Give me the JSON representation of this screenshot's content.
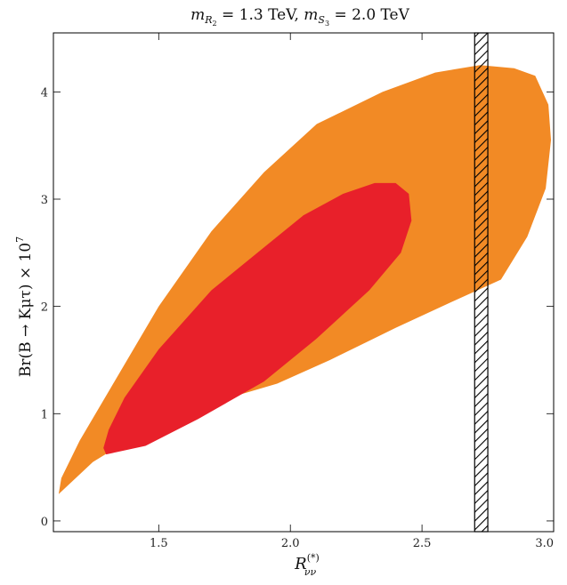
{
  "chart_data": {
    "type": "area",
    "title": {
      "prefix_var": "m",
      "prefix_sub_var": "R",
      "prefix_sub_sub": "2",
      "prefix_value": " = 1.3 TeV,  ",
      "second_var": "m",
      "second_sub_var": "S",
      "second_sub_sub": "3",
      "second_value": " = 2.0 TeV"
    },
    "xlabel": {
      "base": "R",
      "sup": "(*)",
      "sub": "νν"
    },
    "ylabel": "Br(B → Kμτ) × 10",
    "ylabel_exp": "7",
    "xlim": [
      1.1,
      3.0
    ],
    "ylim": [
      -0.1,
      4.55
    ],
    "x_ticks": [
      {
        "v": 1.5,
        "label": "1.5"
      },
      {
        "v": 2.0,
        "label": "2.0"
      },
      {
        "v": 2.5,
        "label": "2.5"
      },
      {
        "v": 3.0,
        "label": "3.0"
      }
    ],
    "y_ticks": [
      {
        "v": 0,
        "label": "0"
      },
      {
        "v": 1,
        "label": "1"
      },
      {
        "v": 2,
        "label": "2"
      },
      {
        "v": 3,
        "label": "3"
      },
      {
        "v": 4,
        "label": "4"
      }
    ],
    "colors": {
      "outer_region": "#F28A25",
      "inner_region": "#E8202A",
      "frame": "#000000",
      "hatch": "#000000"
    },
    "regions": [
      {
        "id": "outer",
        "color": "#F28A25",
        "points": [
          [
            1.12,
            0.25
          ],
          [
            1.25,
            0.55
          ],
          [
            1.45,
            0.85
          ],
          [
            1.7,
            1.1
          ],
          [
            1.95,
            1.28
          ],
          [
            2.15,
            1.5
          ],
          [
            2.4,
            1.8
          ],
          [
            2.62,
            2.05
          ],
          [
            2.8,
            2.25
          ],
          [
            2.9,
            2.65
          ],
          [
            2.97,
            3.1
          ],
          [
            2.99,
            3.55
          ],
          [
            2.98,
            3.88
          ],
          [
            2.93,
            4.15
          ],
          [
            2.85,
            4.22
          ],
          [
            2.72,
            4.25
          ],
          [
            2.55,
            4.18
          ],
          [
            2.35,
            4.0
          ],
          [
            2.1,
            3.7
          ],
          [
            1.9,
            3.25
          ],
          [
            1.7,
            2.7
          ],
          [
            1.5,
            2.0
          ],
          [
            1.32,
            1.25
          ],
          [
            1.2,
            0.75
          ],
          [
            1.13,
            0.4
          ]
        ]
      },
      {
        "id": "inner",
        "color": "#E8202A",
        "points": [
          [
            1.3,
            0.62
          ],
          [
            1.45,
            0.7
          ],
          [
            1.65,
            0.95
          ],
          [
            1.9,
            1.3
          ],
          [
            2.1,
            1.7
          ],
          [
            2.3,
            2.15
          ],
          [
            2.42,
            2.5
          ],
          [
            2.46,
            2.8
          ],
          [
            2.45,
            3.05
          ],
          [
            2.4,
            3.15
          ],
          [
            2.32,
            3.15
          ],
          [
            2.2,
            3.05
          ],
          [
            2.05,
            2.85
          ],
          [
            1.9,
            2.55
          ],
          [
            1.7,
            2.15
          ],
          [
            1.5,
            1.6
          ],
          [
            1.37,
            1.15
          ],
          [
            1.31,
            0.85
          ],
          [
            1.29,
            0.68
          ]
        ]
      }
    ],
    "exclusion_band": {
      "x_min": 2.7,
      "x_max": 2.75,
      "style": "hatched"
    },
    "grid": false,
    "legend": "none"
  }
}
